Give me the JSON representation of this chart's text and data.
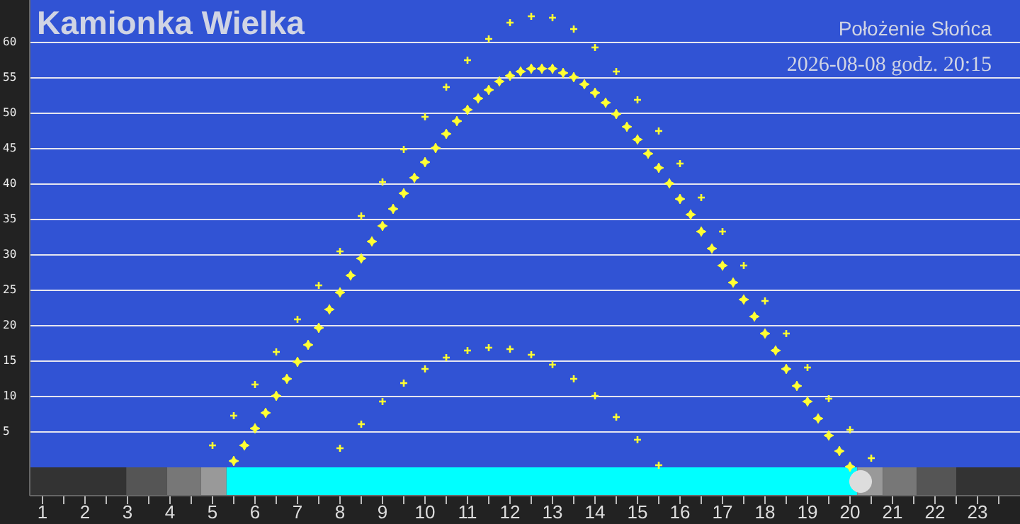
{
  "chart_data": {
    "type": "scatter",
    "title": "Kamionka Wielka",
    "subtitle": "Położenie Słońca",
    "annotations": [
      "2026-08-08 godz. 20:15"
    ],
    "xlim": [
      0.7,
      24
    ],
    "ylim": [
      -4,
      66
    ],
    "xticks": [
      1,
      {
        "value": 1.5,
        "label": null
      },
      2,
      {
        "value": 2.5,
        "label": null
      },
      3,
      {
        "value": 3.5,
        "label": null
      },
      4,
      {
        "value": 4.5,
        "label": null
      },
      5,
      {
        "value": 5.5,
        "label": null
      },
      6,
      {
        "value": 6.5,
        "label": null
      },
      7,
      {
        "value": 7.5,
        "label": null
      },
      8,
      {
        "value": 8.5,
        "label": null
      },
      9,
      {
        "value": 9.5,
        "label": null
      },
      10,
      {
        "value": 10.5,
        "label": null
      },
      11,
      {
        "value": 11.5,
        "label": null
      },
      12,
      {
        "value": 12.5,
        "label": null
      },
      13,
      {
        "value": 13.5,
        "label": null
      },
      14,
      {
        "value": 14.5,
        "label": null
      },
      15,
      {
        "value": 15.5,
        "label": null
      },
      16,
      {
        "value": 16.5,
        "label": null
      },
      17,
      {
        "value": 17.5,
        "label": null
      },
      18,
      {
        "value": 18.5,
        "label": null
      },
      19,
      {
        "value": 19.5,
        "label": null
      },
      20,
      {
        "value": 20.5,
        "label": null
      },
      21,
      {
        "value": 21.5,
        "label": null
      },
      22,
      {
        "value": 22.5,
        "label": null
      },
      23,
      {
        "value": 23.5,
        "label": null
      }
    ],
    "yticks": [
      5,
      10,
      15,
      20,
      25,
      30,
      35,
      40,
      45,
      50,
      55,
      60
    ],
    "grid": "y",
    "series": [
      {
        "color": "#ffff33",
        "marker": "cross",
        "x": [
          5,
          5.5,
          6,
          6.5,
          7,
          7.5,
          8,
          8.5,
          9,
          9.5,
          10,
          10.5,
          11,
          11.5,
          12,
          12.5,
          13,
          13.5,
          14,
          14.5,
          15,
          15.5,
          16,
          16.5,
          17,
          17.5,
          18,
          18.5,
          19,
          19.5,
          20,
          20.5
        ],
        "values": [
          3.1,
          7.3,
          11.7,
          16.3,
          20.9,
          25.7,
          30.5,
          35.5,
          40.3,
          44.9,
          49.5,
          53.7,
          57.5,
          60.5,
          62.8,
          63.7,
          63.5,
          61.9,
          59.3,
          55.9,
          51.9,
          47.5,
          42.9,
          38.1,
          33.3,
          28.5,
          23.5,
          18.9,
          14.1,
          9.7,
          5.3,
          1.3
        ]
      },
      {
        "color": "#ffff33",
        "marker": "cross",
        "x": [
          8,
          8.5,
          9,
          9.5,
          10,
          10.5,
          11,
          11.5,
          12,
          12.5,
          13,
          13.5,
          14,
          14.5,
          15,
          15.5
        ],
        "values": [
          2.7,
          6.1,
          9.3,
          11.9,
          13.9,
          15.5,
          16.5,
          16.9,
          16.7,
          15.9,
          14.5,
          12.5,
          10.1,
          7.1,
          3.9,
          0.3
        ]
      },
      {
        "color": "#dddddd",
        "marker": "circle",
        "x": [
          20.25
        ],
        "values": [
          -2
        ]
      },
      {
        "color": "#ffff33",
        "marker": "diamond",
        "x": [
          5.5,
          5.75,
          6,
          6.25,
          6.5,
          6.75,
          7,
          7.25,
          7.5,
          7.75,
          8,
          8.25,
          8.5,
          8.75,
          9,
          9.25,
          9.5,
          9.75,
          10,
          10.25,
          10.5,
          10.75,
          11,
          11.25,
          11.5,
          11.75,
          12,
          12.25,
          12.5,
          12.75,
          13,
          13.25,
          13.5,
          13.75,
          14,
          14.25,
          14.5,
          14.75,
          15,
          15.25,
          15.5,
          15.75,
          16,
          16.25,
          16.5,
          16.75,
          17,
          17.25,
          17.5,
          17.75,
          18,
          18.25,
          18.5,
          18.75,
          19,
          19.25,
          19.5,
          19.75,
          20
        ],
        "values": [
          0.9,
          3.1,
          5.5,
          7.7,
          10.1,
          12.5,
          14.9,
          17.3,
          19.7,
          22.3,
          24.7,
          27.1,
          29.5,
          31.9,
          34.1,
          36.5,
          38.7,
          40.9,
          43.1,
          45.1,
          47.1,
          48.9,
          50.5,
          52.1,
          53.3,
          54.5,
          55.3,
          55.9,
          56.3,
          56.3,
          56.3,
          55.7,
          55.1,
          54.1,
          52.9,
          51.5,
          49.9,
          48.1,
          46.3,
          44.3,
          42.3,
          40.1,
          37.9,
          35.7,
          33.3,
          30.9,
          28.5,
          26.1,
          23.7,
          21.3,
          18.9,
          16.5,
          13.9,
          11.5,
          9.3,
          6.9,
          4.5,
          2.3,
          0.1
        ]
      }
    ],
    "bands": [
      {
        "axis": "x",
        "from": 0.7,
        "to": 2.97,
        "color": "#333333"
      },
      {
        "axis": "x",
        "from": 2.97,
        "to": 3.93,
        "color": "#555555"
      },
      {
        "axis": "x",
        "from": 3.93,
        "to": 4.73,
        "color": "#777777"
      },
      {
        "axis": "x",
        "from": 4.73,
        "to": 5.33,
        "color": "#999999"
      },
      {
        "axis": "x",
        "from": 5.33,
        "to": 20.17,
        "color": "#00ffff"
      },
      {
        "axis": "x",
        "from": 20.17,
        "to": 20.77,
        "color": "#999999"
      },
      {
        "axis": "x",
        "from": 20.77,
        "to": 21.57,
        "color": "#777777"
      },
      {
        "axis": "x",
        "from": 21.57,
        "to": 22.5,
        "color": "#555555"
      },
      {
        "axis": "x",
        "from": 22.5,
        "to": 24,
        "color": "#333333"
      }
    ]
  }
}
